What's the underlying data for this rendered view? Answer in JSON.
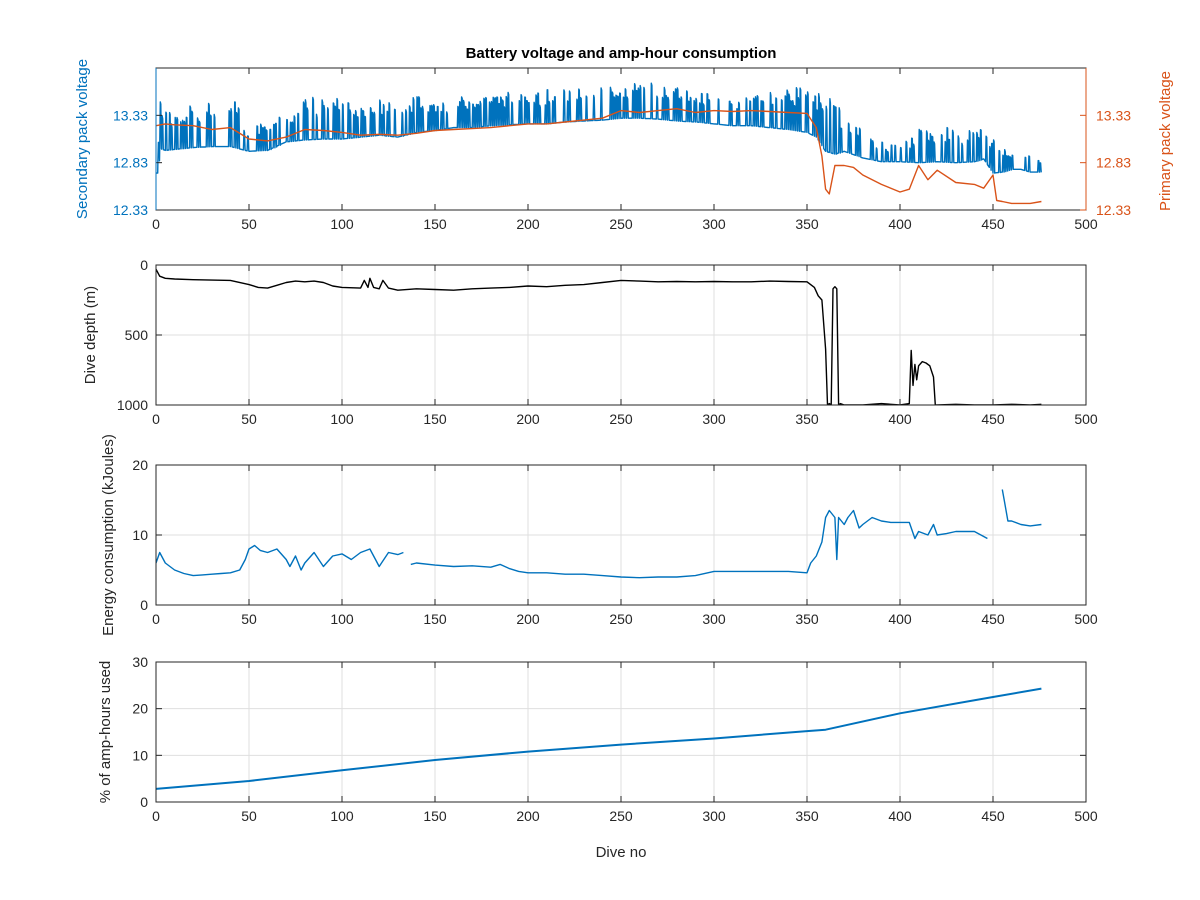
{
  "figure": {
    "title": "Battery voltage and amp-hour consumption"
  },
  "colors": {
    "blue": "#0072BD",
    "orange": "#D95319",
    "black": "#000000",
    "grid": "#dfdfdf",
    "axis": "#262626"
  },
  "chart_data": [
    {
      "id": "voltage",
      "type": "line",
      "title": "Battery voltage and amp-hour consumption",
      "xlabel": "",
      "ylabel": "Secondary pack voltage",
      "ylabel_right": "Primary pack voltage",
      "xlim": [
        0,
        500
      ],
      "ylim": [
        12.33,
        13.83
      ],
      "ylim_right": [
        12.33,
        13.83
      ],
      "xticks": [
        "0",
        "50",
        "100",
        "150",
        "200",
        "250",
        "300",
        "350",
        "400",
        "450",
        "500"
      ],
      "yticks": [
        "12.33",
        "12.83",
        "13.33"
      ],
      "yticks_right": [
        "12.33",
        "12.83",
        "13.33"
      ],
      "grid": false,
      "series": [
        {
          "axis": "left",
          "color": "#0072BD",
          "spiky": true,
          "x": [
            0,
            2,
            5,
            10,
            20,
            30,
            40,
            50,
            60,
            70,
            80,
            90,
            100,
            110,
            120,
            130,
            140,
            150,
            160,
            170,
            180,
            190,
            200,
            210,
            220,
            230,
            240,
            250,
            260,
            270,
            280,
            290,
            300,
            310,
            320,
            330,
            340,
            350,
            355,
            360,
            365,
            370,
            380,
            390,
            400,
            410,
            420,
            430,
            440,
            445,
            450,
            455,
            460,
            465,
            470,
            476
          ],
          "y": [
            12.72,
            12.98,
            12.96,
            12.97,
            12.99,
            13.0,
            13.0,
            12.95,
            12.96,
            13.05,
            13.07,
            13.08,
            13.08,
            13.1,
            13.12,
            13.1,
            13.15,
            13.17,
            13.2,
            13.2,
            13.22,
            13.23,
            13.24,
            13.24,
            13.26,
            13.27,
            13.28,
            13.3,
            13.3,
            13.29,
            13.27,
            13.26,
            13.24,
            13.22,
            13.22,
            13.2,
            13.18,
            13.15,
            13.1,
            12.95,
            12.92,
            12.95,
            12.88,
            12.84,
            12.84,
            12.83,
            12.84,
            12.83,
            12.84,
            12.87,
            12.72,
            12.73,
            12.76,
            12.76,
            12.73,
            12.73
          ],
          "spike_top": [
            12.72,
            13.5,
            13.48,
            13.42,
            13.46,
            13.5,
            13.55,
            13.2,
            13.3,
            13.38,
            13.5,
            13.55,
            13.5,
            13.48,
            13.5,
            13.45,
            13.55,
            13.5,
            13.52,
            13.55,
            13.55,
            13.58,
            13.58,
            13.6,
            13.62,
            13.65,
            13.65,
            13.68,
            13.68,
            13.7,
            13.65,
            13.6,
            13.55,
            13.5,
            13.55,
            13.6,
            13.65,
            13.6,
            13.55,
            13.7,
            13.5,
            13.3,
            13.2,
            13.05,
            13.0,
            13.2,
            13.22,
            13.2,
            13.18,
            13.2,
            13.1,
            13.05,
            12.95,
            12.92,
            12.9,
            12.88
          ]
        },
        {
          "axis": "right",
          "color": "#D95319",
          "x": [
            0,
            5,
            10,
            20,
            30,
            40,
            50,
            60,
            70,
            80,
            90,
            100,
            110,
            120,
            130,
            140,
            150,
            160,
            170,
            180,
            190,
            200,
            210,
            220,
            230,
            240,
            250,
            260,
            270,
            280,
            290,
            300,
            310,
            320,
            330,
            340,
            350,
            355,
            358,
            360,
            362,
            365,
            370,
            375,
            380,
            390,
            400,
            405,
            410,
            415,
            420,
            430,
            440,
            445,
            450,
            452,
            455,
            460,
            470,
            476
          ],
          "y": [
            13.22,
            13.24,
            13.23,
            13.22,
            13.18,
            13.2,
            13.08,
            13.06,
            13.1,
            13.18,
            13.17,
            13.15,
            13.12,
            13.13,
            13.12,
            13.14,
            13.17,
            13.18,
            13.19,
            13.2,
            13.22,
            13.24,
            13.24,
            13.26,
            13.28,
            13.3,
            13.38,
            13.36,
            13.38,
            13.4,
            13.36,
            13.38,
            13.37,
            13.38,
            13.37,
            13.36,
            13.35,
            13.2,
            12.9,
            12.55,
            12.5,
            12.8,
            12.8,
            12.78,
            12.7,
            12.6,
            12.52,
            12.55,
            12.8,
            12.65,
            12.75,
            12.62,
            12.6,
            12.56,
            12.7,
            12.43,
            12.42,
            12.4,
            12.4,
            12.42
          ]
        }
      ]
    },
    {
      "id": "depth",
      "type": "line",
      "xlabel": "",
      "ylabel": "Dive depth (m)",
      "xlim": [
        0,
        500
      ],
      "ylim": [
        0,
        1000
      ],
      "reversed": true,
      "xticks": [
        "0",
        "50",
        "100",
        "150",
        "200",
        "250",
        "300",
        "350",
        "400",
        "450",
        "500"
      ],
      "yticks": [
        "0",
        "500",
        "1000"
      ],
      "grid": true,
      "series": [
        {
          "color": "#000000",
          "x": [
            0,
            2,
            5,
            10,
            20,
            30,
            40,
            50,
            55,
            60,
            65,
            70,
            75,
            80,
            85,
            90,
            95,
            100,
            110,
            112,
            114,
            115,
            117,
            120,
            122,
            125,
            130,
            140,
            150,
            160,
            170,
            180,
            190,
            200,
            210,
            220,
            230,
            240,
            250,
            260,
            270,
            280,
            290,
            300,
            310,
            320,
            330,
            340,
            350,
            354,
            356,
            358,
            360,
            361,
            362,
            363,
            364,
            365,
            366,
            367,
            368,
            370,
            380,
            390,
            400,
            405,
            406,
            407,
            408,
            409,
            410,
            412,
            414,
            416,
            418,
            419,
            420,
            430,
            440,
            450,
            460,
            470,
            476
          ],
          "y": [
            30,
            80,
            95,
            100,
            105,
            108,
            110,
            140,
            160,
            165,
            145,
            125,
            115,
            120,
            115,
            125,
            150,
            160,
            165,
            110,
            160,
            95,
            160,
            170,
            110,
            165,
            180,
            170,
            175,
            180,
            170,
            165,
            160,
            150,
            155,
            145,
            140,
            125,
            110,
            115,
            120,
            118,
            120,
            118,
            120,
            120,
            115,
            118,
            120,
            160,
            220,
            250,
            600,
            1000,
            990,
            1000,
            170,
            155,
            170,
            1000,
            990,
            1000,
            1000,
            990,
            1000,
            990,
            610,
            860,
            710,
            820,
            720,
            690,
            700,
            720,
            800,
            1000,
            1000,
            995,
            1000,
            1000,
            995,
            1000,
            995
          ]
        }
      ]
    },
    {
      "id": "energy",
      "type": "line",
      "xlabel": "",
      "ylabel": "Energy consumption (kJoules)",
      "xlim": [
        0,
        500
      ],
      "ylim": [
        0,
        20
      ],
      "xticks": [
        "0",
        "50",
        "100",
        "150",
        "200",
        "250",
        "300",
        "350",
        "400",
        "450",
        "500"
      ],
      "yticks": [
        "0",
        "10",
        "20"
      ],
      "grid": true,
      "series": [
        {
          "color": "#0072BD",
          "segments": [
            {
              "x": [
                0,
                2,
                5,
                10,
                15,
                20,
                25,
                30,
                35,
                40,
                45,
                48,
                50,
                53,
                56,
                60,
                65,
                70,
                72,
                75,
                78,
                80,
                85,
                90,
                95,
                100,
                105,
                110,
                115,
                118,
                120,
                125,
                130,
                133
              ],
              "y": [
                6,
                7.5,
                6,
                5,
                4.5,
                4.2,
                4.3,
                4.4,
                4.5,
                4.6,
                5,
                6.5,
                8,
                8.5,
                7.8,
                7.5,
                8,
                6.5,
                5.5,
                7,
                5,
                6,
                7.5,
                5.5,
                7,
                7.3,
                6.5,
                7.5,
                8,
                6.5,
                5.5,
                7.5,
                7.2,
                7.5
              ]
            },
            {
              "x": [
                137,
                140,
                150,
                160,
                170,
                180,
                185,
                190,
                195,
                200,
                210,
                220,
                230,
                240,
                250,
                260,
                270,
                280,
                290,
                300,
                310,
                320,
                330,
                340,
                350,
                352,
                355,
                358,
                360,
                362,
                365,
                366,
                367,
                370,
                372,
                375,
                378,
                380,
                385,
                390,
                395,
                400,
                405,
                408,
                410,
                415,
                418,
                420,
                425,
                430,
                440,
                447
              ],
              "y": [
                5.8,
                6,
                5.7,
                5.5,
                5.6,
                5.4,
                5.8,
                5.2,
                4.8,
                4.6,
                4.6,
                4.4,
                4.4,
                4.2,
                4.0,
                3.9,
                4.0,
                4.0,
                4.2,
                4.8,
                4.8,
                4.8,
                4.8,
                4.8,
                4.6,
                6,
                7,
                9,
                12.5,
                13.5,
                12.5,
                6.5,
                12.5,
                11.5,
                12.5,
                13.5,
                11,
                11.5,
                12.5,
                12,
                11.8,
                11.8,
                11.8,
                9.5,
                10.5,
                10,
                11.5,
                10,
                10.2,
                10.5,
                10.5,
                9.5
              ]
            },
            {
              "x": [
                455,
                456,
                458,
                460,
                465,
                470,
                476
              ],
              "y": [
                16.5,
                15,
                12,
                12,
                11.5,
                11.3,
                11.5
              ]
            }
          ]
        }
      ]
    },
    {
      "id": "amphours",
      "type": "line",
      "xlabel": "Dive no",
      "ylabel": "% of amp-hours used",
      "xlim": [
        0,
        500
      ],
      "ylim": [
        0,
        30
      ],
      "xticks": [
        "0",
        "50",
        "100",
        "150",
        "200",
        "250",
        "300",
        "350",
        "400",
        "450",
        "500"
      ],
      "yticks": [
        "0",
        "10",
        "20",
        "30"
      ],
      "grid": true,
      "series": [
        {
          "color": "#0072BD",
          "x": [
            0,
            50,
            100,
            150,
            200,
            250,
            300,
            350,
            360,
            400,
            450,
            476
          ],
          "y": [
            2.8,
            4.5,
            6.8,
            9.0,
            10.8,
            12.3,
            13.6,
            15.2,
            15.5,
            19.0,
            22.5,
            24.3
          ]
        }
      ]
    }
  ]
}
